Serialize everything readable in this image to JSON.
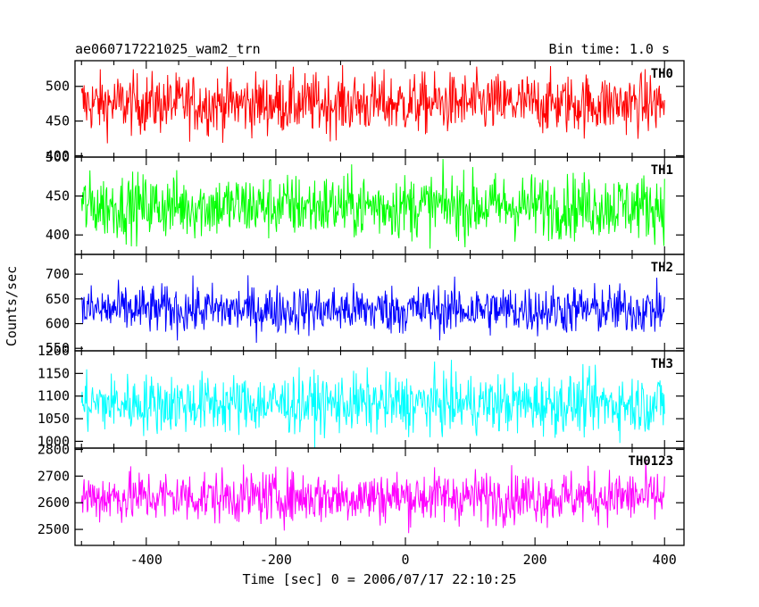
{
  "header": {
    "title": "ae060717221025_wam2_trn",
    "bin_time": "Bin time: 1.0 s"
  },
  "chart_data": {
    "type": "line",
    "title": "ae060717221025_wam2_trn",
    "subtitle": "Bin time: 1.0 s",
    "xlabel": "Time [sec] 0 = 2006/07/17 22:10:25",
    "ylabel": "Counts/sec",
    "xlim": [
      -510,
      430
    ],
    "x_range": [
      -500,
      400
    ],
    "x_step": 1,
    "xticks": [
      -400,
      -200,
      0,
      200,
      400
    ],
    "panels": [
      {
        "name": "TH0",
        "color": "#ff0000",
        "ylim": [
          398,
          537
        ],
        "yticks": [
          400,
          450,
          500
        ],
        "mean": 475,
        "spread": 22
      },
      {
        "name": "TH1",
        "color": "#00ff00",
        "ylim": [
          375,
          500
        ],
        "yticks": [
          400,
          450,
          500
        ],
        "mean": 437,
        "spread": 21
      },
      {
        "name": "TH2",
        "color": "#0000ff",
        "ylim": [
          545,
          740
        ],
        "yticks": [
          550,
          600,
          650,
          700
        ],
        "mean": 628,
        "spread": 25
      },
      {
        "name": "TH3",
        "color": "#00ffff",
        "ylim": [
          985,
          1200
        ],
        "yticks": [
          1000,
          1050,
          1100,
          1150,
          1200
        ],
        "mean": 1083,
        "spread": 33
      },
      {
        "name": "TH0123",
        "color": "#ff00ff",
        "ylim": [
          2440,
          2805
        ],
        "yticks": [
          2500,
          2600,
          2700,
          2800
        ],
        "mean": 2622,
        "spread": 50
      }
    ]
  }
}
